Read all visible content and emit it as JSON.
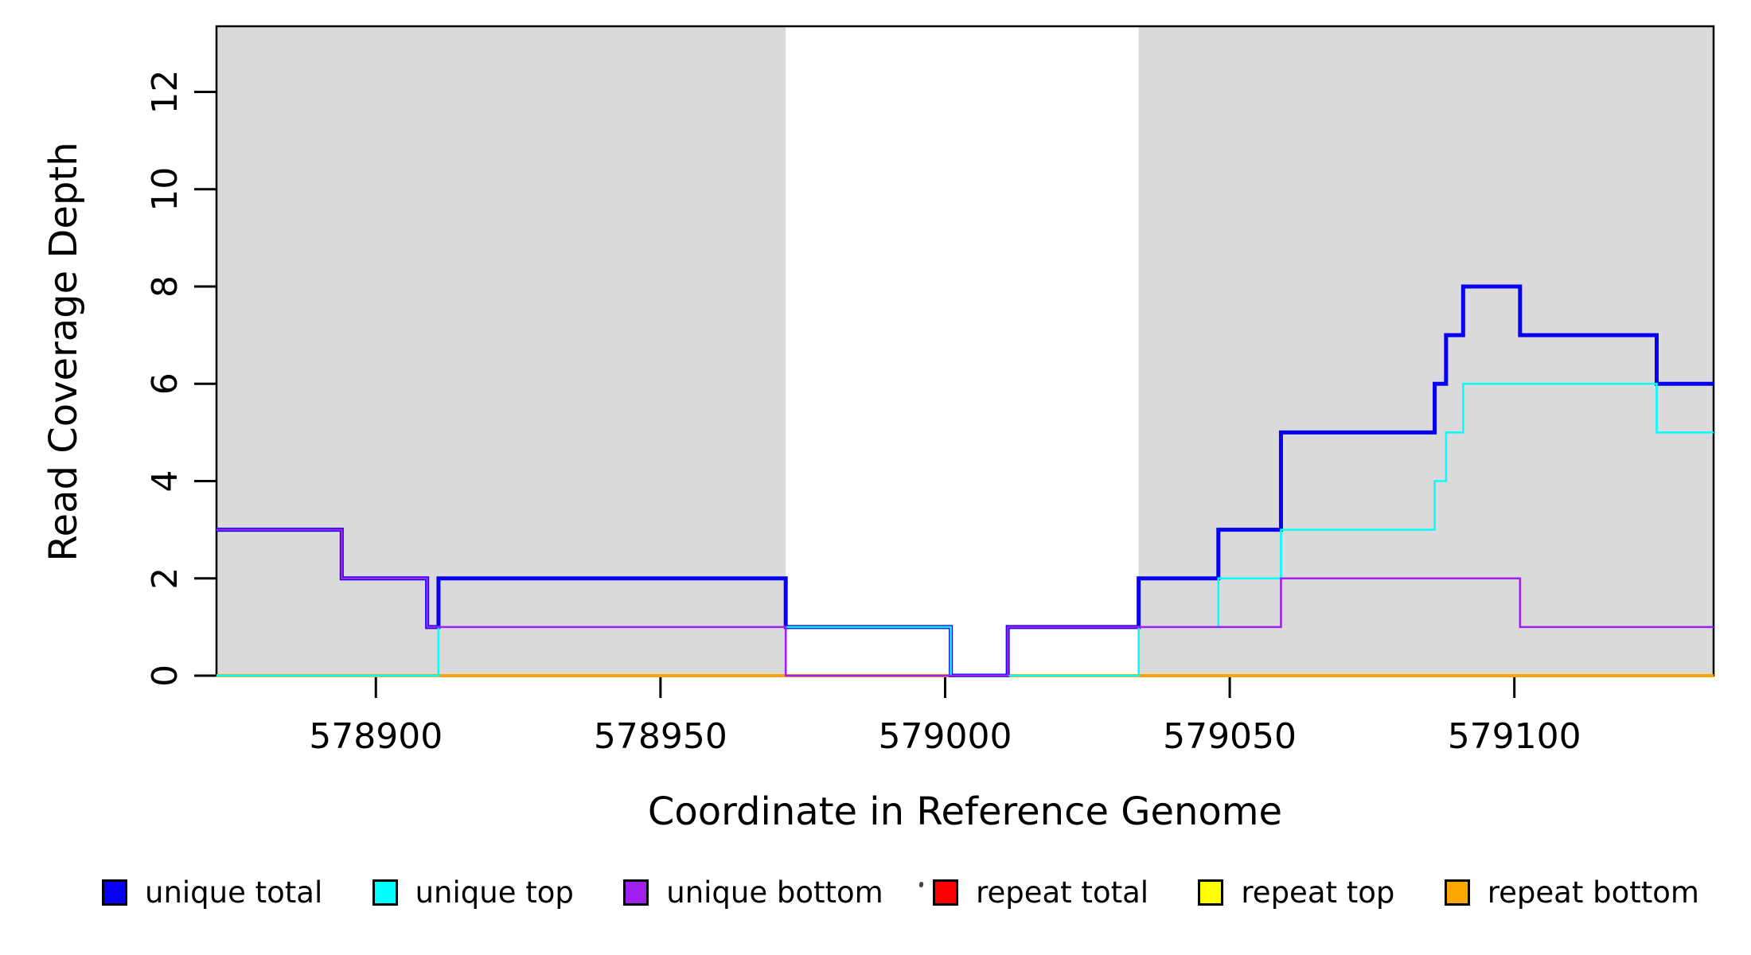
{
  "chart_data": {
    "type": "line",
    "subtype": "step-coverage-plot",
    "title": "",
    "xlabel": "Coordinate in Reference Genome",
    "ylabel": "Read Coverage Depth",
    "xlim": [
      578872,
      579135
    ],
    "ylim": [
      0,
      13.35
    ],
    "x_ticks": [
      578900,
      578950,
      579000,
      579050,
      579100
    ],
    "y_ticks": [
      0,
      2,
      4,
      6,
      8,
      10,
      12
    ],
    "grid": false,
    "background_color": "#ffffff",
    "axis_color": "#000000",
    "shaded_regions": [
      {
        "x0": 578872,
        "x1": 578972,
        "color": "#DADADA",
        "note": "left shaded panel"
      },
      {
        "x0": 579034,
        "x1": 579135,
        "color": "#DADADA",
        "note": "right shaded panel"
      }
    ],
    "series": [
      {
        "name": "repeat total",
        "color": "#FF0000",
        "line_width": 2.5,
        "breakpoints": [
          [
            578872,
            0
          ]
        ]
      },
      {
        "name": "repeat top",
        "color": "#FFFF00",
        "line_width": 2.5,
        "breakpoints": [
          [
            578872,
            0
          ]
        ]
      },
      {
        "name": "repeat bottom",
        "color": "#FFA500",
        "line_width": 4,
        "breakpoints": [
          [
            578872,
            0
          ]
        ]
      },
      {
        "name": "unique total",
        "color": "#0800F0",
        "line_width": 5,
        "breakpoints": [
          [
            578872,
            3
          ],
          [
            578894,
            2
          ],
          [
            578909,
            1
          ],
          [
            578911,
            2
          ],
          [
            578972,
            1
          ],
          [
            579001,
            0
          ],
          [
            579011,
            1
          ],
          [
            579034,
            2
          ],
          [
            579048,
            3
          ],
          [
            579059,
            5
          ],
          [
            579086,
            6
          ],
          [
            579088,
            7
          ],
          [
            579091,
            8
          ],
          [
            579101,
            7
          ],
          [
            579125,
            6
          ]
        ]
      },
      {
        "name": "unique top",
        "color": "#00FFFF",
        "line_width": 2.6,
        "breakpoints": [
          [
            578872,
            0
          ],
          [
            578911,
            1
          ],
          [
            579001,
            0
          ],
          [
            579034,
            1
          ],
          [
            579048,
            2
          ],
          [
            579059,
            3
          ],
          [
            579086,
            4
          ],
          [
            579088,
            5
          ],
          [
            579091,
            6
          ],
          [
            579125,
            5
          ]
        ]
      },
      {
        "name": "unique bottom",
        "color": "#A020F0",
        "line_width": 2.6,
        "breakpoints": [
          [
            578872,
            3
          ],
          [
            578894,
            2
          ],
          [
            578909,
            1
          ],
          [
            578972,
            0
          ],
          [
            579011,
            1
          ],
          [
            579059,
            2
          ],
          [
            579101,
            1
          ]
        ]
      }
    ],
    "legend": [
      {
        "label": "unique total",
        "color": "#0800F0"
      },
      {
        "label": "unique top",
        "color": "#00FFFF"
      },
      {
        "label": "unique bottom",
        "color": "#A020F0"
      },
      {
        "label": "repeat total",
        "color": "#FF0000"
      },
      {
        "label": "repeat top",
        "color": "#FFFF00"
      },
      {
        "label": "repeat bottom",
        "color": "#FFA500"
      }
    ],
    "legend_position": "bottom"
  }
}
